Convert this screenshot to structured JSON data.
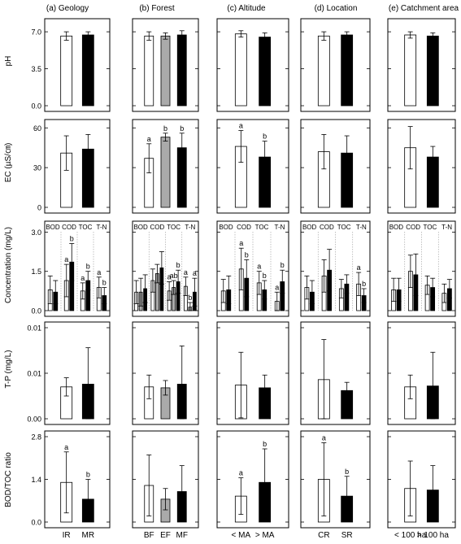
{
  "chart_data": {
    "type": "bar",
    "columns": [
      {
        "title": "(a) Geology",
        "groups": [
          "IR",
          "MR"
        ]
      },
      {
        "title": "(b) Forest",
        "groups": [
          "BF",
          "EF",
          "MF"
        ]
      },
      {
        "title": "(c) Altitude",
        "groups": [
          "< MA",
          "> MA"
        ]
      },
      {
        "title": "(d) Location",
        "groups": [
          "CR",
          "SR"
        ]
      },
      {
        "title": "(e) Catchment area",
        "groups": [
          "< 100 ha",
          "> 100 ha"
        ]
      }
    ],
    "rows": [
      {
        "ylabel": "pH",
        "ylim": [
          0,
          7.7
        ],
        "ticks": [
          0.0,
          3.5,
          7.0
        ],
        "tick_labels": [
          "0.0",
          "3.5",
          "7.0"
        ],
        "panels": [
          {
            "bars": [
              {
                "v": 6.6,
                "e": 0.4
              },
              {
                "v": 6.7,
                "e": 0.3
              }
            ],
            "letters": []
          },
          {
            "bars": [
              {
                "v": 6.6,
                "e": 0.4
              },
              {
                "v": 6.6,
                "e": 0.3
              },
              {
                "v": 6.7,
                "e": 0.4
              }
            ],
            "letters": []
          },
          {
            "bars": [
              {
                "v": 6.8,
                "e": 0.3
              },
              {
                "v": 6.5,
                "e": 0.4
              }
            ],
            "letters": []
          },
          {
            "bars": [
              {
                "v": 6.6,
                "e": 0.4
              },
              {
                "v": 6.7,
                "e": 0.3
              }
            ],
            "letters": []
          },
          {
            "bars": [
              {
                "v": 6.7,
                "e": 0.3
              },
              {
                "v": 6.6,
                "e": 0.3
              }
            ],
            "letters": []
          }
        ]
      },
      {
        "ylabel": "EC (µS/㎝)",
        "ylim": [
          0,
          62
        ],
        "ticks": [
          0,
          30,
          60
        ],
        "tick_labels": [
          "0",
          "30",
          "60"
        ],
        "panels": [
          {
            "bars": [
              {
                "v": 41,
                "e": 13
              },
              {
                "v": 44,
                "e": 11
              }
            ],
            "letters": []
          },
          {
            "bars": [
              {
                "v": 37,
                "e": 11
              },
              {
                "v": 53,
                "e": 3
              },
              {
                "v": 45,
                "e": 11
              }
            ],
            "letters": [
              "a",
              "b",
              "b"
            ]
          },
          {
            "bars": [
              {
                "v": 46,
                "e": 12
              },
              {
                "v": 38,
                "e": 12
              }
            ],
            "letters": [
              "a",
              "b"
            ]
          },
          {
            "bars": [
              {
                "v": 42,
                "e": 13
              },
              {
                "v": 41,
                "e": 13
              }
            ],
            "letters": []
          },
          {
            "bars": [
              {
                "v": 45,
                "e": 16
              },
              {
                "v": 38,
                "e": 8
              }
            ],
            "letters": []
          }
        ]
      },
      {
        "ylabel": "Concentration (mg/L)",
        "ylim": [
          0,
          3.2
        ],
        "ticks": [
          0.0,
          1.5,
          3.0
        ],
        "tick_labels": [
          "0.0",
          "1.5",
          "3.0"
        ],
        "params": [
          "BOD",
          "COD",
          "TOC",
          "T-N"
        ],
        "panels": [
          {
            "clusters": [
              [
                {
                  "v": 0.9,
                  "e": 0.6
                },
                {
                  "v": 0.8,
                  "e": 0.5
                }
              ],
              [
                {
                  "v": 1.3,
                  "e": 0.7
                },
                {
                  "v": 2.1,
                  "e": 0.8
                }
              ],
              [
                {
                  "v": 0.85,
                  "e": 0.35
                },
                {
                  "v": 1.3,
                  "e": 0.4
                }
              ],
              [
                {
                  "v": 1.0,
                  "e": 0.45
                },
                {
                  "v": 0.65,
                  "e": 0.35
                }
              ]
            ],
            "letters": [
              [
                "",
                ""
              ],
              [
                "a",
                "b"
              ],
              [
                "a",
                "b"
              ],
              [
                "a",
                "b"
              ]
            ]
          },
          {
            "clusters": [
              [
                {
                  "v": 0.8,
                  "e": 0.5
                },
                {
                  "v": 0.8,
                  "e": 0.6
                },
                {
                  "v": 0.95,
                  "e": 0.6
                }
              ],
              [
                {
                  "v": 1.3,
                  "e": 0.5
                },
                {
                  "v": 1.6,
                  "e": 0.4
                },
                {
                  "v": 1.85,
                  "e": 0.7
                }
              ],
              [
                {
                  "v": 0.85,
                  "e": 0.4
                },
                {
                  "v": 1.0,
                  "e": 0.3
                },
                {
                  "v": 1.25,
                  "e": 0.5
                }
              ],
              [
                {
                  "v": 1.05,
                  "e": 0.4
                },
                {
                  "v": 0.15,
                  "e": 0.2
                },
                {
                  "v": 0.8,
                  "e": 0.6
                }
              ]
            ],
            "letters": [
              [
                "",
                "",
                ""
              ],
              [
                "",
                "",
                ""
              ],
              [
                "a",
                "ab",
                "b"
              ],
              [
                "a",
                "b",
                "a"
              ]
            ]
          },
          {
            "clusters": [
              [
                {
                  "v": 0.85,
                  "e": 0.5
                },
                {
                  "v": 0.9,
                  "e": 0.6
                }
              ],
              [
                {
                  "v": 1.8,
                  "e": 0.9
                },
                {
                  "v": 1.4,
                  "e": 0.8
                }
              ],
              [
                {
                  "v": 1.2,
                  "e": 0.5
                },
                {
                  "v": 0.9,
                  "e": 0.4
                }
              ],
              [
                {
                  "v": 0.4,
                  "e": 0.4
                },
                {
                  "v": 1.25,
                  "e": 0.5
                }
              ]
            ],
            "letters": [
              [
                "",
                ""
              ],
              [
                "a",
                "b"
              ],
              [
                "a",
                "b"
              ],
              [
                "a",
                "b"
              ]
            ]
          },
          {
            "clusters": [
              [
                {
                  "v": 1.0,
                  "e": 0.5
                },
                {
                  "v": 0.8,
                  "e": 0.5
                }
              ],
              [
                {
                  "v": 1.5,
                  "e": 0.7
                },
                {
                  "v": 1.75,
                  "e": 0.9
                }
              ],
              [
                {
                  "v": 0.95,
                  "e": 0.4
                },
                {
                  "v": 1.15,
                  "e": 0.4
                }
              ],
              [
                {
                  "v": 1.15,
                  "e": 0.5
                },
                {
                  "v": 0.65,
                  "e": 0.3
                }
              ]
            ],
            "letters": [
              [
                "",
                ""
              ],
              [
                "",
                ""
              ],
              [
                "",
                ""
              ],
              [
                "a",
                "b"
              ]
            ]
          },
          {
            "clusters": [
              [
                {
                  "v": 0.9,
                  "e": 0.5
                },
                {
                  "v": 0.9,
                  "e": 0.5
                }
              ],
              [
                {
                  "v": 1.7,
                  "e": 0.7
                },
                {
                  "v": 1.55,
                  "e": 0.9
                }
              ],
              [
                {
                  "v": 1.1,
                  "e": 0.4
                },
                {
                  "v": 1.0,
                  "e": 0.4
                }
              ],
              [
                {
                  "v": 0.75,
                  "e": 0.4
                },
                {
                  "v": 0.95,
                  "e": 0.4
                }
              ]
            ],
            "letters": [
              [
                "",
                ""
              ],
              [
                "",
                ""
              ],
              [
                "",
                ""
              ],
              [
                "",
                ""
              ]
            ]
          }
        ]
      },
      {
        "ylabel": "T-P (mg/L)",
        "ylim": [
          0,
          0.01
        ],
        "ticks": [
          0.0,
          0.005,
          0.01
        ],
        "tick_labels": [
          "0.00",
          "0.01",
          "0.01"
        ],
        "panels": [
          {
            "bars": [
              {
                "v": 0.0035,
                "e": 0.001
              },
              {
                "v": 0.0038,
                "e": 0.004
              }
            ],
            "letters": []
          },
          {
            "bars": [
              {
                "v": 0.0035,
                "e": 0.0013
              },
              {
                "v": 0.0034,
                "e": 0.0008
              },
              {
                "v": 0.0038,
                "e": 0.0042
              }
            ],
            "letters": []
          },
          {
            "bars": [
              {
                "v": 0.0037,
                "e": 0.0036
              },
              {
                "v": 0.0034,
                "e": 0.0014
              }
            ],
            "letters": []
          },
          {
            "bars": [
              {
                "v": 0.0043,
                "e": 0.0044
              },
              {
                "v": 0.0031,
                "e": 0.0009
              }
            ],
            "letters": []
          },
          {
            "bars": [
              {
                "v": 0.0035,
                "e": 0.0013
              },
              {
                "v": 0.0036,
                "e": 0.0037
              }
            ],
            "letters": []
          }
        ]
      },
      {
        "ylabel": "BOD/TOC ratio",
        "ylim": [
          0,
          2.8
        ],
        "ticks": [
          0.0,
          1.4,
          2.8
        ],
        "tick_labels": [
          "0.0",
          "1.4",
          "2.8"
        ],
        "panels": [
          {
            "bars": [
              {
                "v": 1.3,
                "e": 1.0
              },
              {
                "v": 0.75,
                "e": 0.65
              }
            ],
            "letters": [
              "a",
              "b"
            ]
          },
          {
            "bars": [
              {
                "v": 1.2,
                "e": 1.0
              },
              {
                "v": 0.75,
                "e": 0.35
              },
              {
                "v": 1.0,
                "e": 0.85
              }
            ],
            "letters": []
          },
          {
            "bars": [
              {
                "v": 0.85,
                "e": 0.6
              },
              {
                "v": 1.3,
                "e": 1.1
              }
            ],
            "letters": [
              "a",
              "b"
            ]
          },
          {
            "bars": [
              {
                "v": 1.4,
                "e": 1.2
              },
              {
                "v": 0.85,
                "e": 0.65
              }
            ],
            "letters": [
              "a",
              "b"
            ]
          },
          {
            "bars": [
              {
                "v": 1.1,
                "e": 0.9
              },
              {
                "v": 1.05,
                "e": 0.8
              }
            ],
            "letters": []
          }
        ]
      }
    ]
  }
}
